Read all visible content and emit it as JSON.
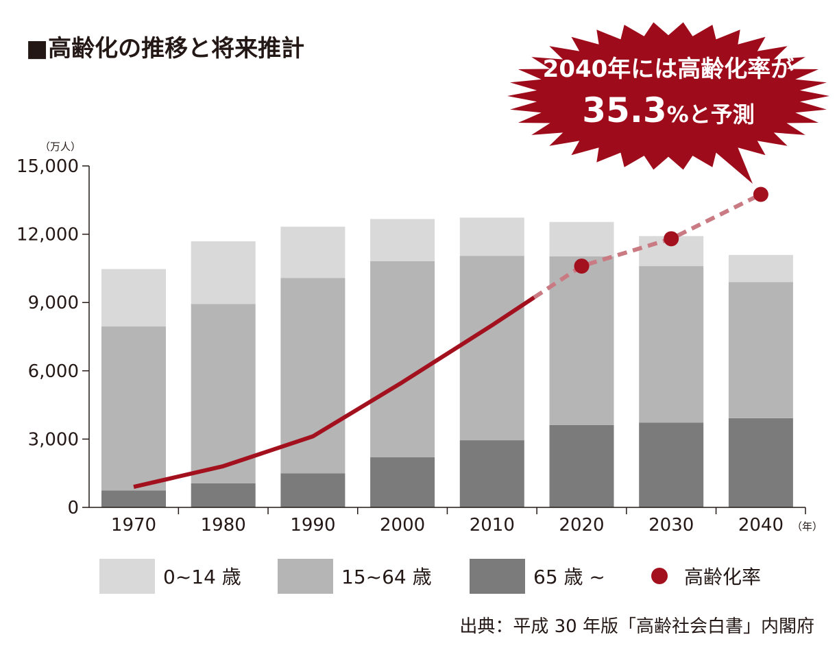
{
  "title": "■高齢化の推移と将来推計",
  "callout": {
    "line1": "2040年には高齢化率が",
    "line2_number": "35.3",
    "line2_rest": "%と予測"
  },
  "source": "出典：平成 30 年版「高齢社会白書」内閣府",
  "colors": {
    "age_0_14": "#d9d9d9",
    "age_15_64": "#b5b5b5",
    "age_65_plus": "#7b7b7b",
    "aging_rate_line": "#a3111f",
    "aging_rate_projection": "#c97a82",
    "callout_fill": "#9e0c1c"
  },
  "chart_data": {
    "type": "bar",
    "stacked": true,
    "categories": [
      "1970",
      "1980",
      "1990",
      "2000",
      "2010",
      "2020",
      "2030",
      "2040"
    ],
    "x_unit": "（年）",
    "y_unit": "（万人）",
    "ylim": [
      0,
      15000
    ],
    "yticks": [
      "0",
      "3,000",
      "6,000",
      "9,000",
      "12,000",
      "15,000"
    ],
    "ytick_values": [
      0,
      3000,
      6000,
      9000,
      12000,
      15000
    ],
    "series": [
      {
        "name": "65 歳 ~",
        "values": [
          740,
          1060,
          1490,
          2200,
          2950,
          3620,
          3720,
          3920
        ]
      },
      {
        "name": "15~64 歳",
        "values": [
          7210,
          7880,
          8590,
          8620,
          8100,
          7410,
          6880,
          5980
        ]
      },
      {
        "name": "0~14 歳",
        "values": [
          2520,
          2750,
          2250,
          1850,
          1680,
          1510,
          1320,
          1190
        ]
      }
    ],
    "line_series": {
      "name": "高齢化率",
      "values": [
        900,
        1810,
        3120,
        5500,
        8000,
        10600,
        11800,
        13750
      ],
      "projected_from_index": 5
    },
    "grid": false,
    "legend_position": "bottom"
  }
}
